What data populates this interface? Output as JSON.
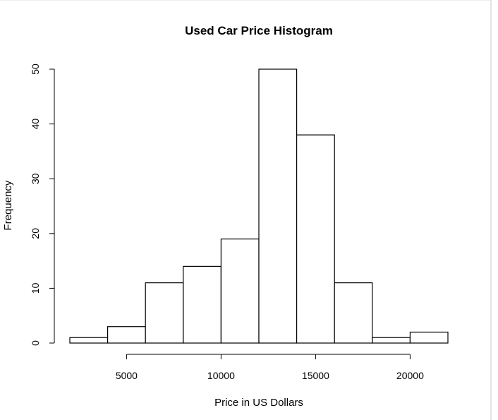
{
  "chart_data": {
    "type": "bar",
    "title": "Used Car Price Histogram",
    "xlabel": "Price in US Dollars",
    "ylabel": "Frequency",
    "bins": [
      {
        "start": 2000,
        "end": 4000,
        "count": 1
      },
      {
        "start": 4000,
        "end": 6000,
        "count": 3
      },
      {
        "start": 6000,
        "end": 8000,
        "count": 11
      },
      {
        "start": 8000,
        "end": 10000,
        "count": 14
      },
      {
        "start": 10000,
        "end": 12000,
        "count": 19
      },
      {
        "start": 12000,
        "end": 14000,
        "count": 50
      },
      {
        "start": 14000,
        "end": 16000,
        "count": 38
      },
      {
        "start": 16000,
        "end": 18000,
        "count": 11
      },
      {
        "start": 18000,
        "end": 20000,
        "count": 1
      },
      {
        "start": 20000,
        "end": 22000,
        "count": 2
      }
    ],
    "xticks": [
      5000,
      10000,
      15000,
      20000
    ],
    "yticks": [
      0,
      10,
      20,
      30,
      40,
      50
    ],
    "xlim": [
      2000,
      22000
    ],
    "ylim": [
      0,
      50
    ],
    "grid": false,
    "colors": {
      "bar_fill": "#ffffff",
      "bar_stroke": "#000000"
    }
  }
}
